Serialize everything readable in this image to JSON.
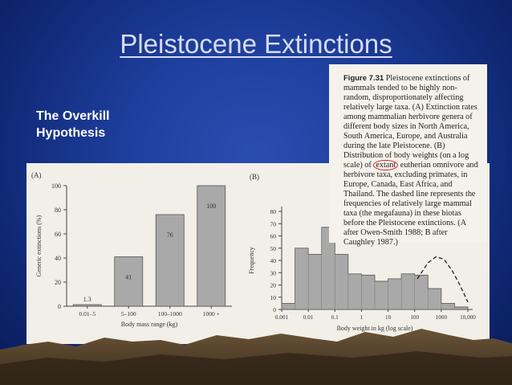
{
  "slide": {
    "title": "Pleistocene Extinctions",
    "subtitle": "The Overkill Hypothesis"
  },
  "caption": {
    "figure_label": "Figure 7.31",
    "body_a": "Pleistocene extinctions of mammals tended to be highly non-random, disproportionately affecting relatively large taxa. (A) Extinction rates among mammalian herbivore genera of different body sizes in North America, South America, Europe, and Australia during the late Pleistocene. (B) Distribution of body weights (on a log scale) of ",
    "circled_word": "extant",
    "body_b": " eutherian omnivore and herbivore taxa, excluding primates, in Europe, Canada, East Africa, and Thailand. The dashed line represents the frequencies of relatively large mammal taxa (the megafauna) in these biotas before the Pleistocene extinctions. (A after Owen-Smith 1988; B after Caughley 1987.)"
  },
  "colors": {
    "circle": "#d42020",
    "bar_fill": "#a9a9a9",
    "caption_bg": "#f4f2ea"
  },
  "chart_data": [
    {
      "type": "bar",
      "panel_label": "(A)",
      "categories": [
        "0.01–5",
        "5–100",
        "100–1000",
        "1000 +"
      ],
      "values": [
        1.3,
        41,
        76,
        100
      ],
      "value_labels": [
        "1.3",
        "41",
        "76",
        "100"
      ],
      "xlabel": "Body mass range (kg)",
      "ylabel": "Generic extinctions (%)",
      "ylim": [
        0,
        100
      ],
      "yticks": [
        "0",
        "20",
        "40",
        "60",
        "80",
        "100"
      ]
    },
    {
      "type": "histogram",
      "panel_label": "(B)",
      "xlabel": "Body weight in kg (log scale)",
      "ylabel": "Frequency",
      "ylim": [
        0,
        80
      ],
      "yticks": [
        "0",
        "10",
        "20",
        "30",
        "40",
        "50",
        "60",
        "70",
        "80"
      ],
      "xticks": [
        "0.001",
        "0.01",
        "0.1",
        "1",
        "10",
        "100",
        "1000",
        "10,000"
      ],
      "bins_log10": [
        -3,
        -2.5,
        -2,
        -1.5,
        -1,
        -0.5,
        0,
        0.5,
        1,
        1.5,
        2,
        2.5,
        3,
        3.5,
        4
      ],
      "values": [
        5,
        50,
        45,
        67,
        45,
        29,
        28,
        23,
        25,
        29,
        28,
        17,
        5,
        2
      ],
      "dashed_megafauna": [
        [
          2.1,
          25
        ],
        [
          2.5,
          38
        ],
        [
          2.8,
          43
        ],
        [
          3.1,
          41
        ],
        [
          3.4,
          32
        ],
        [
          3.7,
          20
        ],
        [
          4.0,
          6
        ]
      ]
    }
  ]
}
